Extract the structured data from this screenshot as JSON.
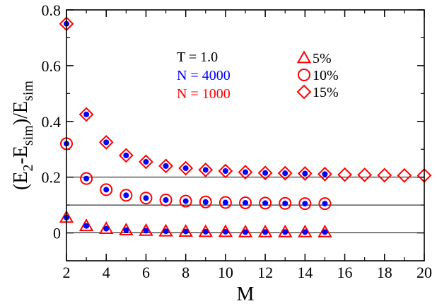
{
  "chart_data": {
    "type": "scatter",
    "xlabel": "M",
    "ylabel_parts": [
      "(E",
      "2",
      "-E",
      "sim",
      ")/E",
      "sim"
    ],
    "xlim": [
      2,
      20
    ],
    "ylim": [
      -0.1,
      0.8
    ],
    "xticks": [
      "2",
      "4",
      "6",
      "8",
      "10",
      "12",
      "14",
      "16",
      "18",
      "20"
    ],
    "yticks": [
      "0",
      "0.2",
      "0.4",
      "0.6",
      "0.8"
    ],
    "hlines": [
      0,
      0.1,
      0.2
    ],
    "annotations": [
      {
        "text": "T = 1.0",
        "color": "#000000"
      },
      {
        "text": "N = 4000",
        "color": "#0000ff"
      },
      {
        "text": "N = 1000",
        "color": "#ff0000"
      }
    ],
    "legend": [
      {
        "marker": "triangle",
        "label": "5%"
      },
      {
        "marker": "circle",
        "label": "10%"
      },
      {
        "marker": "diamond",
        "label": "15%"
      }
    ],
    "colors": {
      "n1000": "#ff0000",
      "n4000": "#0000ff"
    },
    "series": [
      {
        "marker": "diamond",
        "N1000": {
          "x": [
            2,
            3,
            4,
            5,
            6,
            7,
            8,
            9,
            10,
            11,
            12,
            13,
            14,
            15,
            16,
            17,
            18,
            19,
            20
          ],
          "y": [
            0.75,
            0.425,
            0.325,
            0.278,
            0.255,
            0.24,
            0.232,
            0.226,
            0.222,
            0.218,
            0.215,
            0.214,
            0.213,
            0.211,
            0.209,
            0.208,
            0.207,
            0.206,
            0.206
          ]
        },
        "N4000": {
          "x": [
            2,
            3,
            4,
            5,
            6,
            7,
            8,
            9,
            10,
            11,
            12,
            13,
            14,
            15
          ],
          "y": [
            0.75,
            0.425,
            0.325,
            0.278,
            0.255,
            0.24,
            0.232,
            0.226,
            0.222,
            0.218,
            0.215,
            0.214,
            0.213,
            0.211
          ]
        }
      },
      {
        "marker": "circle",
        "N1000": {
          "x": [
            2,
            3,
            4,
            5,
            6,
            7,
            8,
            9,
            10,
            11,
            12,
            13,
            14,
            15
          ],
          "y": [
            0.32,
            0.195,
            0.155,
            0.135,
            0.125,
            0.118,
            0.114,
            0.111,
            0.109,
            0.108,
            0.107,
            0.106,
            0.105,
            0.105
          ]
        },
        "N4000": {
          "x": [
            2,
            3,
            4,
            5,
            6,
            7,
            8,
            9,
            10,
            11,
            12,
            13,
            14,
            15
          ],
          "y": [
            0.32,
            0.195,
            0.155,
            0.135,
            0.125,
            0.118,
            0.114,
            0.111,
            0.109,
            0.108,
            0.107,
            0.106,
            0.105,
            0.105
          ]
        }
      },
      {
        "marker": "triangle",
        "N1000": {
          "x": [
            2,
            3,
            4,
            5,
            6,
            7,
            8,
            9,
            10,
            11,
            12,
            13,
            14,
            15
          ],
          "y": [
            0.055,
            0.025,
            0.015,
            0.01,
            0.008,
            0.006,
            0.005,
            0.004,
            0.004,
            0.003,
            0.003,
            0.003,
            0.003,
            0.003
          ]
        },
        "N4000": {
          "x": [
            2,
            3,
            4,
            5,
            6,
            7,
            8,
            9,
            10,
            11,
            12,
            13,
            14,
            15
          ],
          "y": [
            0.055,
            0.025,
            0.015,
            0.01,
            0.008,
            0.006,
            0.005,
            0.004,
            0.004,
            0.003,
            0.003,
            0.003,
            0.003,
            0.003
          ]
        }
      }
    ]
  }
}
